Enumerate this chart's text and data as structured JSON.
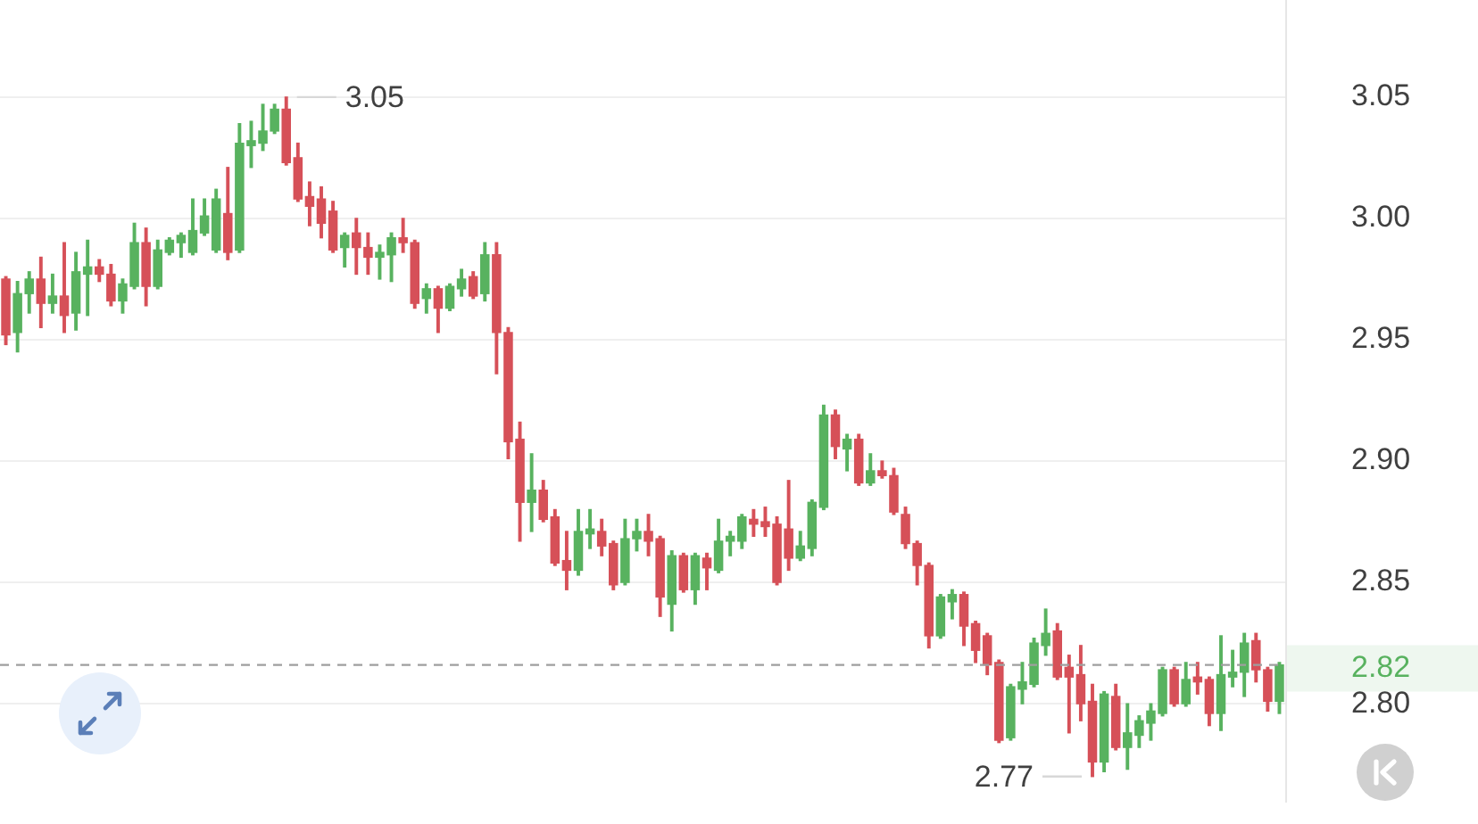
{
  "chart_data": {
    "type": "candlestick",
    "categories": [
      null,
      null,
      null,
      null,
      null,
      null,
      null,
      null,
      null,
      null,
      null,
      null,
      null,
      null,
      null,
      null,
      null,
      null,
      null,
      null,
      null,
      null,
      null,
      null,
      null,
      null,
      null,
      null,
      null,
      null,
      null,
      null,
      null,
      null,
      null,
      null,
      null,
      null,
      null,
      null,
      null,
      null,
      null,
      null,
      null,
      null,
      null,
      null,
      null,
      null,
      null,
      null,
      null,
      null,
      null,
      null,
      null,
      null,
      null,
      null,
      null,
      null,
      null,
      null,
      null,
      null,
      null,
      null,
      null,
      null,
      null,
      null,
      null,
      null,
      null,
      null,
      null,
      null,
      null,
      null,
      null,
      null,
      null,
      null,
      null,
      null,
      null,
      null,
      null,
      null,
      null,
      null,
      null,
      null,
      null,
      null,
      null,
      null,
      null,
      null,
      null,
      null,
      null,
      null,
      null,
      null,
      null,
      null,
      null,
      null
    ],
    "ohlc": [
      [
        2.975,
        2.976,
        2.948,
        2.952
      ],
      [
        2.953,
        2.974,
        2.945,
        2.969
      ],
      [
        2.969,
        2.978,
        2.961,
        2.975
      ],
      [
        2.975,
        2.984,
        2.955,
        2.965
      ],
      [
        2.965,
        2.977,
        2.961,
        2.968
      ],
      [
        2.968,
        2.99,
        2.953,
        2.96
      ],
      [
        2.961,
        2.986,
        2.954,
        2.978
      ],
      [
        2.977,
        2.991,
        2.96,
        2.98
      ],
      [
        2.98,
        2.983,
        2.974,
        2.977
      ],
      [
        2.977,
        2.981,
        2.964,
        2.966
      ],
      [
        2.966,
        2.975,
        2.961,
        2.973
      ],
      [
        2.972,
        2.998,
        2.971,
        2.99
      ],
      [
        2.99,
        2.996,
        2.964,
        2.972
      ],
      [
        2.972,
        2.991,
        2.971,
        2.987
      ],
      [
        2.986,
        2.992,
        2.985,
        2.991
      ],
      [
        2.99,
        2.994,
        2.984,
        2.993
      ],
      [
        2.986,
        3.008,
        2.985,
        2.995
      ],
      [
        2.994,
        3.008,
        2.993,
        3.001
      ],
      [
        2.987,
        3.012,
        2.986,
        3.008
      ],
      [
        3.002,
        3.021,
        2.983,
        2.986
      ],
      [
        2.987,
        3.039,
        2.986,
        3.031
      ],
      [
        3.03,
        3.04,
        3.021,
        3.032
      ],
      [
        3.031,
        3.047,
        3.028,
        3.036
      ],
      [
        3.036,
        3.047,
        3.035,
        3.045
      ],
      [
        3.045,
        3.05,
        3.022,
        3.023
      ],
      [
        3.025,
        3.031,
        3.007,
        3.008
      ],
      [
        3.009,
        3.015,
        2.997,
        3.005
      ],
      [
        3.008,
        3.013,
        2.992,
        2.998
      ],
      [
        3.003,
        3.007,
        2.986,
        2.987
      ],
      [
        2.988,
        2.994,
        2.98,
        2.993
      ],
      [
        2.994,
        3.0,
        2.977,
        2.988
      ],
      [
        2.988,
        2.994,
        2.977,
        2.984
      ],
      [
        2.984,
        2.989,
        2.975,
        2.986
      ],
      [
        2.985,
        2.994,
        2.974,
        2.992
      ],
      [
        2.992,
        3.0,
        2.986,
        2.99
      ],
      [
        2.99,
        2.991,
        2.963,
        2.965
      ],
      [
        2.967,
        2.973,
        2.961,
        2.971
      ],
      [
        2.971,
        2.972,
        2.953,
        2.963
      ],
      [
        2.963,
        2.973,
        2.962,
        2.972
      ],
      [
        2.971,
        2.979,
        2.968,
        2.975
      ],
      [
        2.976,
        2.978,
        2.967,
        2.968
      ],
      [
        2.969,
        2.99,
        2.966,
        2.985
      ],
      [
        2.985,
        2.99,
        2.936,
        2.953
      ],
      [
        2.953,
        2.955,
        2.901,
        2.908
      ],
      [
        2.909,
        2.916,
        2.867,
        2.883
      ],
      [
        2.883,
        2.903,
        2.871,
        2.888
      ],
      [
        2.888,
        2.892,
        2.875,
        2.876
      ],
      [
        2.877,
        2.88,
        2.857,
        2.858
      ],
      [
        2.859,
        2.871,
        2.847,
        2.855
      ],
      [
        2.855,
        2.88,
        2.853,
        2.871
      ],
      [
        2.87,
        2.88,
        2.864,
        2.872
      ],
      [
        2.871,
        2.876,
        2.861,
        2.865
      ],
      [
        2.866,
        2.867,
        2.847,
        2.849
      ],
      [
        2.85,
        2.876,
        2.849,
        2.868
      ],
      [
        2.868,
        2.876,
        2.863,
        2.871
      ],
      [
        2.871,
        2.878,
        2.861,
        2.867
      ],
      [
        2.868,
        2.869,
        2.836,
        2.844
      ],
      [
        2.841,
        2.863,
        2.83,
        2.861
      ],
      [
        2.861,
        2.862,
        2.846,
        2.847
      ],
      [
        2.847,
        2.862,
        2.841,
        2.861
      ],
      [
        2.86,
        2.862,
        2.847,
        2.856
      ],
      [
        2.855,
        2.876,
        2.854,
        2.867
      ],
      [
        2.867,
        2.871,
        2.861,
        2.869
      ],
      [
        2.867,
        2.878,
        2.864,
        2.877
      ],
      [
        2.876,
        2.88,
        2.869,
        2.874
      ],
      [
        2.875,
        2.881,
        2.869,
        2.873
      ],
      [
        2.874,
        2.877,
        2.849,
        2.85
      ],
      [
        2.872,
        2.892,
        2.855,
        2.86
      ],
      [
        2.86,
        2.871,
        2.859,
        2.865
      ],
      [
        2.864,
        2.884,
        2.861,
        2.883
      ],
      [
        2.881,
        2.923,
        2.88,
        2.919
      ],
      [
        2.919,
        2.921,
        2.901,
        2.906
      ],
      [
        2.905,
        2.911,
        2.896,
        2.909
      ],
      [
        2.909,
        2.911,
        2.89,
        2.891
      ],
      [
        2.891,
        2.903,
        2.89,
        2.896
      ],
      [
        2.896,
        2.9,
        2.893,
        2.894
      ],
      [
        2.894,
        2.897,
        2.878,
        2.879
      ],
      [
        2.878,
        2.881,
        2.864,
        2.866
      ],
      [
        2.866,
        2.867,
        2.849,
        2.857
      ],
      [
        2.857,
        2.858,
        2.823,
        2.828
      ],
      [
        2.828,
        2.845,
        2.827,
        2.844
      ],
      [
        2.842,
        2.847,
        2.835,
        2.845
      ],
      [
        2.845,
        2.846,
        2.824,
        2.832
      ],
      [
        2.833,
        2.834,
        2.817,
        2.822
      ],
      [
        2.828,
        2.829,
        2.812,
        2.816
      ],
      [
        2.817,
        2.818,
        2.784,
        2.785
      ],
      [
        2.786,
        2.808,
        2.785,
        2.807
      ],
      [
        2.806,
        2.817,
        2.8,
        2.809
      ],
      [
        2.808,
        2.827,
        2.807,
        2.825
      ],
      [
        2.824,
        2.839,
        2.82,
        2.829
      ],
      [
        2.83,
        2.833,
        2.81,
        2.811
      ],
      [
        2.815,
        2.82,
        2.788,
        2.811
      ],
      [
        2.812,
        2.824,
        2.793,
        2.8
      ],
      [
        2.801,
        2.808,
        2.77,
        2.776
      ],
      [
        2.776,
        2.805,
        2.772,
        2.804
      ],
      [
        2.803,
        2.808,
        2.781,
        2.782
      ],
      [
        2.782,
        2.8,
        2.773,
        2.788
      ],
      [
        2.787,
        2.795,
        2.782,
        2.793
      ],
      [
        2.792,
        2.8,
        2.785,
        2.797
      ],
      [
        2.796,
        2.815,
        2.795,
        2.814
      ],
      [
        2.814,
        2.815,
        2.799,
        2.8
      ],
      [
        2.8,
        2.817,
        2.799,
        2.81
      ],
      [
        2.811,
        2.817,
        2.804,
        2.809
      ],
      [
        2.81,
        2.811,
        2.791,
        2.796
      ],
      [
        2.796,
        2.828,
        2.789,
        2.812
      ],
      [
        2.811,
        2.822,
        2.807,
        2.813
      ],
      [
        2.813,
        2.829,
        2.803,
        2.825
      ],
      [
        2.826,
        2.829,
        2.809,
        2.814
      ],
      [
        2.814,
        2.815,
        2.797,
        2.801
      ],
      [
        2.801,
        2.817,
        2.796,
        2.816
      ]
    ],
    "colors": [
      "#d65058",
      "#58b25f",
      "#58b25f",
      "#d65058",
      "#58b25f",
      "#d65058",
      "#58b25f",
      "#58b25f",
      "#d65058",
      "#d65058",
      "#58b25f",
      "#58b25f",
      "#d65058",
      "#58b25f",
      "#58b25f",
      "#58b25f",
      "#58b25f",
      "#58b25f",
      "#58b25f",
      "#d65058",
      "#58b25f",
      "#58b25f",
      "#58b25f",
      "#58b25f",
      "#d65058",
      "#d65058",
      "#d65058",
      "#d65058",
      "#d65058",
      "#58b25f",
      "#d65058",
      "#d65058",
      "#58b25f",
      "#58b25f",
      "#d65058",
      "#d65058",
      "#58b25f",
      "#d65058",
      "#58b25f",
      "#58b25f",
      "#d65058",
      "#58b25f",
      "#d65058",
      "#d65058",
      "#d65058",
      "#58b25f",
      "#d65058",
      "#d65058",
      "#d65058",
      "#58b25f",
      "#58b25f",
      "#d65058",
      "#d65058",
      "#58b25f",
      "#58b25f",
      "#d65058",
      "#d65058",
      "#58b25f",
      "#d65058",
      "#58b25f",
      "#d65058",
      "#58b25f",
      "#58b25f",
      "#58b25f",
      "#d65058",
      "#d65058",
      "#d65058",
      "#d65058",
      "#58b25f",
      "#58b25f",
      "#58b25f",
      "#d65058",
      "#58b25f",
      "#d65058",
      "#58b25f",
      "#d65058",
      "#d65058",
      "#d65058",
      "#d65058",
      "#d65058",
      "#58b25f",
      "#58b25f",
      "#d65058",
      "#d65058",
      "#d65058",
      "#d65058",
      "#58b25f",
      "#58b25f",
      "#58b25f",
      "#58b25f",
      "#d65058",
      "#d65058",
      "#d65058",
      "#d65058",
      "#58b25f",
      "#d65058",
      "#58b25f",
      "#58b25f",
      "#58b25f",
      "#58b25f",
      "#d65058",
      "#58b25f",
      "#d65058",
      "#d65058",
      "#58b25f",
      "#58b25f",
      "#58b25f",
      "#d65058",
      "#d65058",
      "#58b25f"
    ],
    "ylim": [
      2.76,
      3.09
    ],
    "yticks": [
      3.05,
      {
        "value": 3,
        "label": "3.00"
      },
      2.95,
      {
        "value": 2.9,
        "label": "2.90"
      },
      2.85,
      {
        "value": 2.8,
        "label": "2.80"
      }
    ],
    "grid": "y",
    "tick_labels": "y",
    "ref_lines": [
      {
        "axis": "y",
        "value": 2.816,
        "label": "2.82",
        "color": "#9e9e9e",
        "line_style": "dashed"
      }
    ],
    "annotations": [
      "3.05",
      "2.77"
    ]
  }
}
